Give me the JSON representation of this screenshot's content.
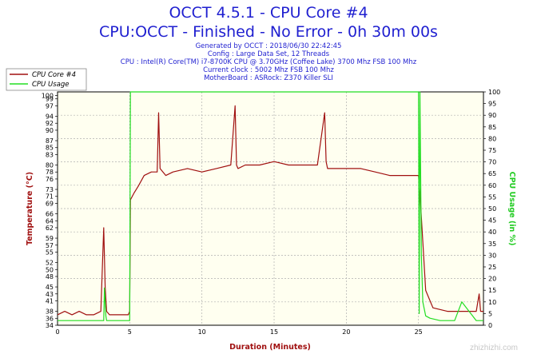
{
  "header": {
    "title": "OCCT 4.5.1 - CPU Core #4",
    "subtitle": "CPU:OCCT - Finished - No Error - 0h 30m 00s",
    "info_lines": [
      "Generated by OCCT : 2018/06/30 22:42:45",
      "Config : Large Data Set, 12 Threads",
      "CPU : Intel(R) Core(TM) i7-8700K CPU @ 3.70GHz (Coffee Lake) 3700 Mhz FSB 100 Mhz",
      "Current clock : 5002 Mhz FSB 100 Mhz",
      "MotherBoard : ASRock: Z370 Killer SLI"
    ]
  },
  "watermark": "zhizhizhi.com",
  "colors": {
    "temperature": "#a01010",
    "usage": "#22dd22",
    "left_axis_label": "#a01010",
    "right_axis_label": "#22cc22",
    "x_axis_label": "#a01010",
    "plot_bg": "#fffff0",
    "grid": "#b0b0b0"
  },
  "chart_data": {
    "type": "line",
    "title": "OCCT 4.5.1 - CPU Core #4",
    "xlabel": "Duration (Minutes)",
    "ylabel_left": "Temperature (°C)",
    "ylabel_right": "CPU Usage (in %)",
    "xlim": [
      0,
      29.5
    ],
    "ylim_left": [
      34,
      101
    ],
    "ylim_right": [
      0,
      100
    ],
    "x_ticks": [
      "0",
      "5",
      "10",
      "15",
      "20",
      "25"
    ],
    "y_ticks_left": [
      "34",
      "36",
      "38",
      "41",
      "43",
      "45",
      "48",
      "50",
      "52",
      "55",
      "57",
      "59",
      "62",
      "64",
      "66",
      "69",
      "71",
      "73",
      "76",
      "78",
      "80",
      "83",
      "85",
      "87",
      "90",
      "92",
      "94",
      "97",
      "99",
      "100"
    ],
    "y_ticks_right": [
      "0",
      "5",
      "10",
      "15",
      "20",
      "25",
      "30",
      "35",
      "40",
      "45",
      "50",
      "55",
      "60",
      "65",
      "70",
      "75",
      "80",
      "85",
      "90",
      "95",
      "100"
    ],
    "grid": true,
    "legend_position": "top-left",
    "series": [
      {
        "name": "CPU Core #4",
        "axis": "left",
        "x": [
          0,
          0.5,
          1,
          1.5,
          2,
          2.5,
          3,
          3.2,
          3.3,
          3.4,
          3.6,
          4,
          4.5,
          4.9,
          5.0,
          5.05,
          5.3,
          5.6,
          6.0,
          6.5,
          6.9,
          7.0,
          7.1,
          7.5,
          8,
          9,
          10,
          11,
          12,
          12.3,
          12.4,
          12.5,
          13,
          14,
          15,
          16,
          17,
          18,
          18.5,
          18.6,
          18.7,
          19,
          20,
          21,
          22,
          23,
          24,
          24.5,
          25.0,
          25.1,
          25.3,
          25.5,
          26,
          27,
          28,
          29,
          29.2,
          29.3,
          29.5
        ],
        "y": [
          37,
          38,
          37,
          38,
          37,
          37,
          38,
          62,
          45,
          38,
          37,
          37,
          37,
          37,
          38,
          70,
          72,
          74,
          77,
          78,
          78,
          95,
          79,
          77,
          78,
          79,
          78,
          79,
          80,
          97,
          80,
          79,
          80,
          80,
          81,
          80,
          80,
          80,
          95,
          81,
          79,
          79,
          79,
          79,
          78,
          77,
          77,
          77,
          77,
          72,
          58,
          44,
          39,
          38,
          38,
          38,
          43,
          38,
          38
        ]
      },
      {
        "name": "CPU Usage",
        "axis": "right",
        "x": [
          0,
          3.2,
          3.25,
          3.35,
          3.4,
          4.95,
          5.0,
          5.05,
          24.9,
          25.0,
          25.05,
          25.1,
          25.2,
          25.3,
          25.5,
          25.8,
          26.5,
          27.0,
          27.5,
          28.0,
          29.0,
          29.5
        ],
        "y": [
          2,
          2,
          16,
          4,
          2,
          2,
          2,
          100,
          100,
          100,
          5,
          100,
          30,
          10,
          4,
          3,
          2,
          2,
          2,
          10,
          2,
          2
        ]
      }
    ]
  }
}
